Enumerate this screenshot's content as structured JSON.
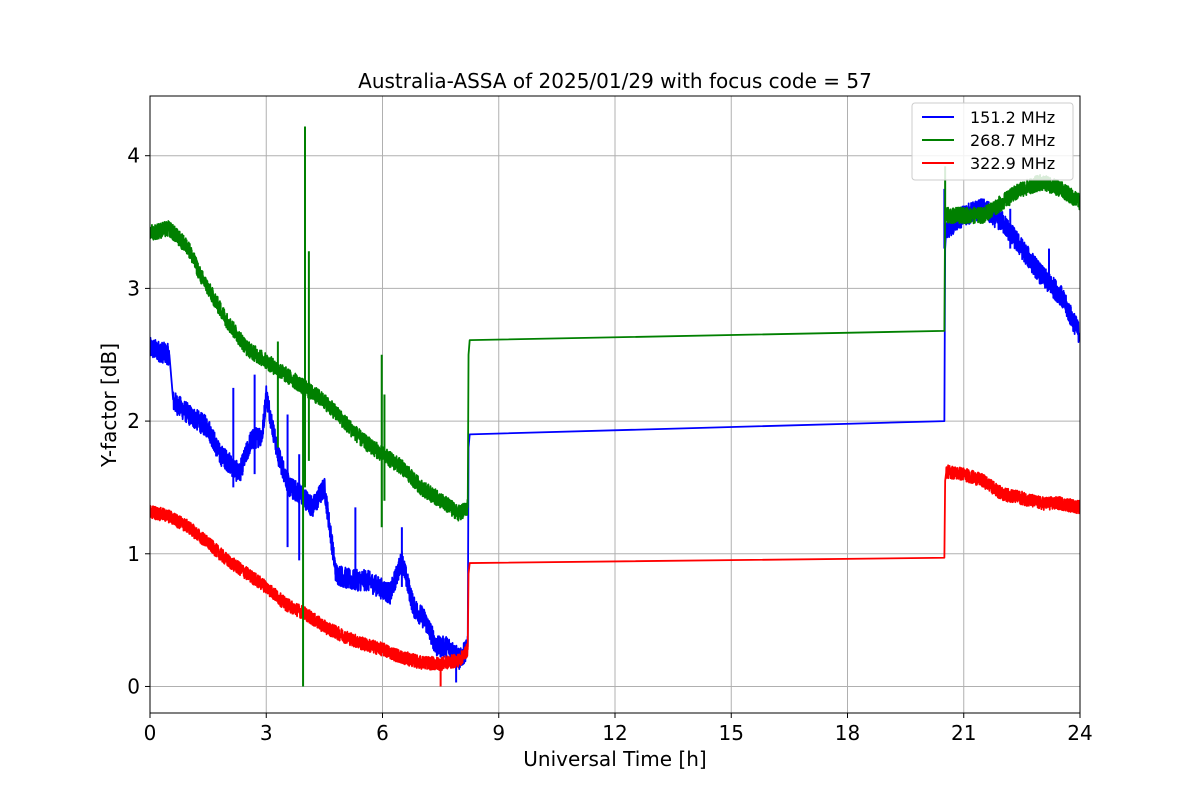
{
  "chart_data": {
    "type": "line",
    "title": "Australia-ASSA of 2025/01/29 with focus code = 57",
    "xlabel": "Universal Time [h]",
    "ylabel": "Y-factor [dB]",
    "xlim": [
      0,
      24
    ],
    "ylim": [
      -0.2,
      4.45
    ],
    "xticks": [
      0,
      3,
      6,
      9,
      12,
      15,
      18,
      21,
      24
    ],
    "yticks": [
      0,
      1,
      2,
      3,
      4
    ],
    "grid": true,
    "legend_position": "top-right",
    "series": [
      {
        "name": "151.2 MHz",
        "color": "#0000ff",
        "x": [
          0,
          0.5,
          0.6,
          1.0,
          1.5,
          1.8,
          2.0,
          2.3,
          2.6,
          2.9,
          3.0,
          3.3,
          3.6,
          3.9,
          4.2,
          4.5,
          4.8,
          5.2,
          5.6,
          5.9,
          6.2,
          6.5,
          6.8,
          7.1,
          7.4,
          7.7,
          8.0,
          8.2,
          8.22,
          8.25,
          20.5,
          20.52,
          20.55,
          21.0,
          21.5,
          22.0,
          22.5,
          23.0,
          23.5,
          24.0
        ],
        "y": [
          2.55,
          2.5,
          2.15,
          2.05,
          1.95,
          1.75,
          1.7,
          1.6,
          1.85,
          1.9,
          2.2,
          1.75,
          1.5,
          1.45,
          1.35,
          1.5,
          0.85,
          0.8,
          0.8,
          0.75,
          0.7,
          0.95,
          0.6,
          0.5,
          0.3,
          0.3,
          0.2,
          0.3,
          1.8,
          1.9,
          2.0,
          3.3,
          3.45,
          3.55,
          3.6,
          3.5,
          3.3,
          3.1,
          2.95,
          2.65
        ],
        "noise": 0.08
      },
      {
        "name": "268.7 MHz",
        "color": "#008000",
        "x": [
          0,
          0.5,
          1.0,
          1.3,
          1.6,
          2.0,
          2.5,
          3.0,
          3.5,
          4.0,
          4.5,
          5.0,
          5.5,
          6.0,
          6.5,
          7.0,
          7.5,
          8.0,
          8.2,
          8.22,
          8.25,
          20.5,
          20.52,
          20.55,
          21.0,
          21.5,
          22.0,
          22.5,
          23.0,
          23.5,
          24.0
        ],
        "y": [
          3.42,
          3.45,
          3.3,
          3.1,
          2.95,
          2.75,
          2.55,
          2.45,
          2.35,
          2.25,
          2.15,
          2.0,
          1.85,
          1.75,
          1.65,
          1.5,
          1.4,
          1.3,
          1.35,
          2.5,
          2.61,
          2.68,
          3.6,
          3.55,
          3.55,
          3.55,
          3.65,
          3.75,
          3.8,
          3.75,
          3.65
        ],
        "noise": 0.06
      },
      {
        "name": "322.9 MHz",
        "color": "#ff0000",
        "x": [
          0,
          0.5,
          1.0,
          1.5,
          2.0,
          2.5,
          3.0,
          3.5,
          4.0,
          4.5,
          5.0,
          5.5,
          6.0,
          6.5,
          7.0,
          7.5,
          8.0,
          8.2,
          8.22,
          8.25,
          20.5,
          20.52,
          20.55,
          21.0,
          21.5,
          22.0,
          22.5,
          23.0,
          23.5,
          24.0
        ],
        "y": [
          1.32,
          1.28,
          1.2,
          1.08,
          0.95,
          0.85,
          0.75,
          0.62,
          0.55,
          0.45,
          0.38,
          0.32,
          0.28,
          0.22,
          0.18,
          0.17,
          0.2,
          0.28,
          0.85,
          0.93,
          0.97,
          1.55,
          1.62,
          1.6,
          1.55,
          1.45,
          1.42,
          1.38,
          1.38,
          1.35
        ],
        "noise": 0.05
      }
    ],
    "spikes": [
      {
        "series": 1,
        "x": 3.95,
        "y_min": 0.0,
        "y_max": 2.3
      },
      {
        "series": 1,
        "x": 4.0,
        "y_min": 1.5,
        "y_max": 4.22
      },
      {
        "series": 1,
        "x": 4.1,
        "y_min": 1.7,
        "y_max": 3.28
      },
      {
        "series": 1,
        "x": 3.3,
        "y_min": 1.8,
        "y_max": 2.6
      },
      {
        "series": 1,
        "x": 5.98,
        "y_min": 1.2,
        "y_max": 2.5
      },
      {
        "series": 1,
        "x": 6.05,
        "y_min": 1.4,
        "y_max": 2.2
      },
      {
        "series": 0,
        "x": 2.7,
        "y_min": 1.6,
        "y_max": 2.35
      },
      {
        "series": 0,
        "x": 2.15,
        "y_min": 1.5,
        "y_max": 2.25
      },
      {
        "series": 0,
        "x": 3.55,
        "y_min": 1.05,
        "y_max": 2.05
      },
      {
        "series": 0,
        "x": 3.85,
        "y_min": 0.95,
        "y_max": 1.75
      },
      {
        "series": 0,
        "x": 5.3,
        "y_min": 0.85,
        "y_max": 1.35
      },
      {
        "series": 0,
        "x": 6.5,
        "y_min": 0.75,
        "y_max": 1.2
      },
      {
        "series": 0,
        "x": 20.5,
        "y_min": 3.3,
        "y_max": 3.75
      },
      {
        "series": 1,
        "x": 20.52,
        "y_min": 3.5,
        "y_max": 3.92
      },
      {
        "series": 0,
        "x": 23.2,
        "y_min": 3.0,
        "y_max": 3.3
      },
      {
        "series": 0,
        "x": 22.2,
        "y_min": 3.3,
        "y_max": 3.6
      },
      {
        "series": 2,
        "x": 7.5,
        "y_min": 0.0,
        "y_max": 0.2
      },
      {
        "series": 0,
        "x": 7.9,
        "y_min": 0.03,
        "y_max": 0.25
      }
    ]
  }
}
